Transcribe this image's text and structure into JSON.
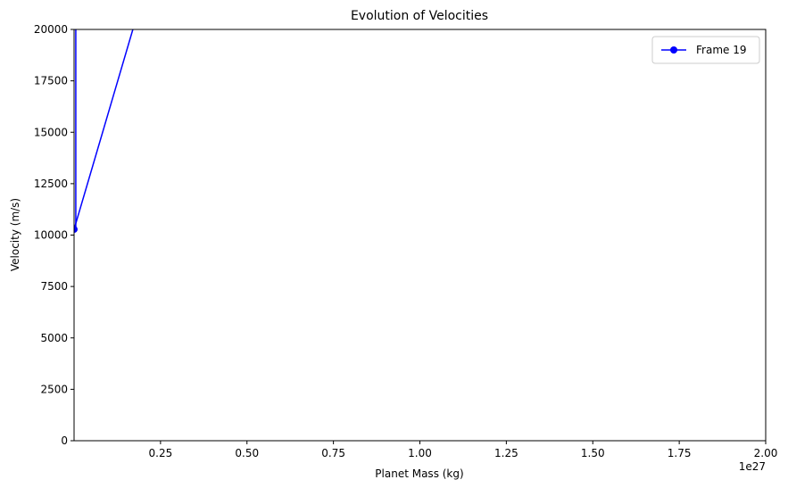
{
  "chart_data": {
    "type": "line",
    "title": "Evolution of Velocities",
    "xlabel": "Planet Mass (kg)",
    "ylabel": "Velocity (m/s)",
    "x_offset_label": "1e27",
    "xlim": [
      0.0,
      2.0
    ],
    "ylim": [
      0,
      20000
    ],
    "x_ticks": [
      0.25,
      0.5,
      0.75,
      1.0,
      1.25,
      1.5,
      1.75,
      2.0
    ],
    "x_tick_labels": [
      "0.25",
      "0.50",
      "0.75",
      "1.00",
      "1.25",
      "1.50",
      "1.75",
      "2.00"
    ],
    "y_ticks": [
      0,
      2500,
      5000,
      7500,
      10000,
      12500,
      15000,
      17500,
      20000
    ],
    "y_tick_labels": [
      "0",
      "2500",
      "5000",
      "7500",
      "10000",
      "12500",
      "15000",
      "17500",
      "20000"
    ],
    "grid": false,
    "legend_position": "top-right",
    "series": [
      {
        "name": "Frame 19",
        "color": "#0000ff",
        "marker": "circle",
        "x": [
          0.0,
          0.17
        ],
        "y": [
          10280,
          20000
        ],
        "vertical_segment": {
          "x": 0.005,
          "y_from": 10280,
          "y_to": 20000
        }
      }
    ]
  }
}
